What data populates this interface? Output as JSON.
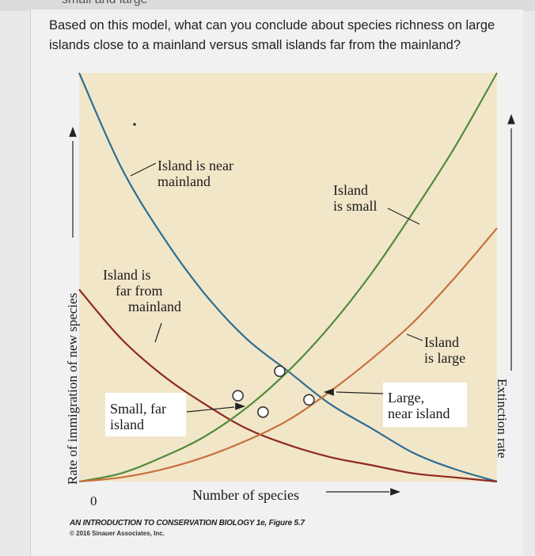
{
  "header_fragment": "small and large",
  "question": "Based on this model, what can you conclude about species richness on large islands close to a mainland versus small islands far from the mainland?",
  "colors": {
    "plot_background": "#f2e6c9",
    "immigration_near": "#2e6e92",
    "immigration_far": "#8e2a1e",
    "extinction_small": "#4f8c3a",
    "extinction_large": "#c8703f"
  },
  "chart_data": {
    "type": "line",
    "title": "",
    "xlabel": "Number of species",
    "ylabel_left": "Rate of immigration of new species",
    "ylabel_right": "Extinction rate",
    "x_tick_labels": [
      "0"
    ],
    "annotations": {
      "island_near": [
        "Island is near",
        "mainland"
      ],
      "island_far": [
        "Island is",
        "far from",
        "mainland"
      ],
      "island_small": [
        "Island",
        "is small"
      ],
      "island_large": [
        "Island",
        "is large"
      ],
      "small_far": [
        "Small, far",
        "island"
      ],
      "large_near": [
        "Large,",
        "near island"
      ]
    },
    "series": [
      {
        "kind": "immigration",
        "x": [
          0.0,
          0.1,
          0.2,
          0.3,
          0.4,
          0.5,
          0.6,
          0.7,
          0.8,
          0.9,
          1.0
        ],
        "y": [
          1.0,
          0.77,
          0.6,
          0.46,
          0.35,
          0.27,
          0.19,
          0.13,
          0.07,
          0.03,
          0.0
        ]
      },
      {
        "kind": "immigration",
        "x": [
          0.0,
          0.1,
          0.2,
          0.3,
          0.4,
          0.5,
          0.6,
          0.7,
          0.8,
          0.9,
          1.0
        ],
        "y": [
          0.47,
          0.35,
          0.26,
          0.19,
          0.13,
          0.09,
          0.06,
          0.04,
          0.02,
          0.01,
          0.0
        ]
      },
      {
        "kind": "extinction",
        "x": [
          0.0,
          0.1,
          0.2,
          0.3,
          0.4,
          0.5,
          0.6,
          0.7,
          0.8,
          0.9,
          1.0
        ],
        "y": [
          0.0,
          0.02,
          0.06,
          0.11,
          0.18,
          0.27,
          0.38,
          0.51,
          0.66,
          0.82,
          1.0
        ]
      },
      {
        "kind": "extinction",
        "x": [
          0.0,
          0.1,
          0.2,
          0.3,
          0.4,
          0.5,
          0.6,
          0.7,
          0.8,
          0.9,
          1.0
        ],
        "y": [
          0.0,
          0.01,
          0.03,
          0.06,
          0.1,
          0.15,
          0.22,
          0.3,
          0.39,
          0.5,
          0.62
        ]
      }
    ],
    "equilibrium_points": [
      {
        "x": 0.38,
        "y": 0.21
      },
      {
        "x": 0.44,
        "y": 0.17
      },
      {
        "x": 0.48,
        "y": 0.27
      },
      {
        "x": 0.55,
        "y": 0.2
      }
    ],
    "grid": false,
    "xlim": [
      0,
      1
    ],
    "ylim": [
      0,
      1
    ]
  },
  "credit": {
    "title": "AN INTRODUCTION TO CONSERVATION BIOLOGY 1e, Figure 5.7",
    "copyright": "© 2016 Sinauer Associates, Inc."
  }
}
